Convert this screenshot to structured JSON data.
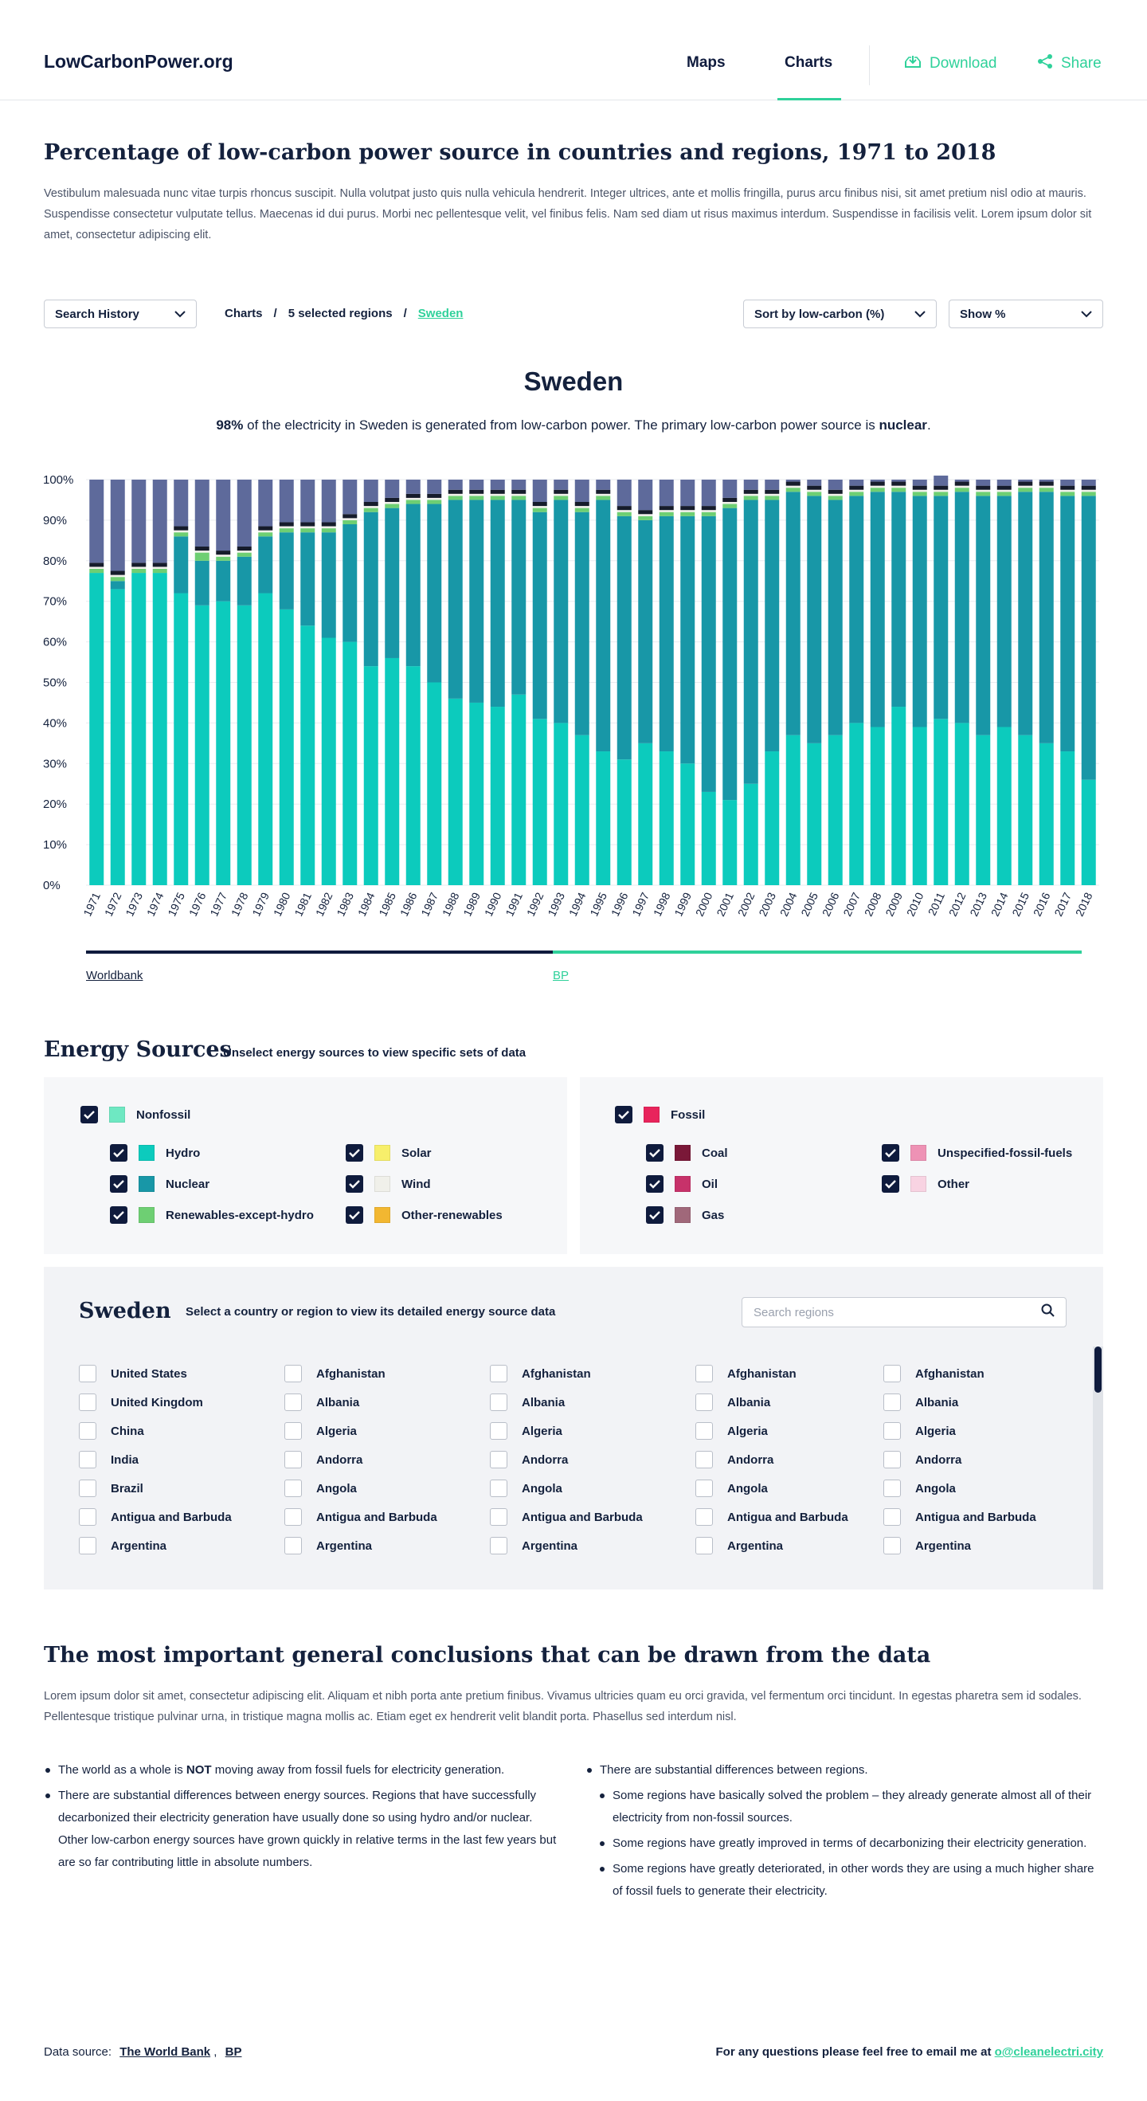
{
  "header": {
    "logo": "LowCarbonPower.org",
    "nav": [
      {
        "label": "Maps"
      },
      {
        "label": "Charts"
      }
    ],
    "download_label": "Download",
    "share_label": "Share"
  },
  "intro": {
    "title": "Percentage of low-carbon power source in countries and regions, 1971 to 2018",
    "text": "Vestibulum malesuada nunc vitae turpis rhoncus suscipit. Nulla volutpat justo quis nulla vehicula hendrerit. Integer ultrices, ante et mollis fringilla, purus arcu finibus nisi, sit amet pretium nisl odio at mauris. Suspendisse consectetur vulputate tellus. Maecenas id dui purus. Morbi nec pellentesque velit, vel finibus felis. Nam sed diam ut risus maximus interdum. Suspendisse in facilisis velit. Lorem ipsum dolor sit amet, consectetur adipiscing elit."
  },
  "controls": {
    "search_history": "Search History",
    "breadcrumb": [
      "Charts",
      "/",
      "5 selected regions",
      "/",
      "Sweden"
    ],
    "sort_label": "Sort by low-carbon (%)",
    "show_label": "Show %"
  },
  "chart_heading": {
    "title": "Sweden",
    "pct": "98%",
    "sub_a": " of the electricity in Sweden is generated from low-carbon power. The primary low-carbon power source is ",
    "primary": "nuclear",
    "sub_b": "."
  },
  "chart_data": {
    "type": "bar",
    "stacked": true,
    "ylim": [
      0,
      100
    ],
    "yticks": [
      "0%",
      "10%",
      "20%",
      "30%",
      "40%",
      "50%",
      "60%",
      "70%",
      "80%",
      "90%",
      "100%"
    ],
    "grid": true,
    "categories": [
      "1971",
      "1972",
      "1973",
      "1974",
      "1975",
      "1976",
      "1977",
      "1978",
      "1979",
      "1980",
      "1981",
      "1982",
      "1983",
      "1984",
      "1985",
      "1986",
      "1987",
      "1988",
      "1989",
      "1990",
      "1991",
      "1992",
      "1993",
      "1994",
      "1995",
      "1996",
      "1997",
      "1998",
      "1999",
      "2000",
      "2001",
      "2002",
      "2003",
      "2004",
      "2005",
      "2006",
      "2007",
      "2008",
      "2009",
      "2010",
      "2011",
      "2012",
      "2013",
      "2014",
      "2015",
      "2016",
      "2017",
      "2018"
    ],
    "series": [
      {
        "name": "Hydro",
        "color": "#0ccbbd",
        "values": [
          77,
          73,
          77,
          77,
          72,
          69,
          70,
          69,
          72,
          68,
          64,
          61,
          60,
          54,
          56,
          54,
          50,
          46,
          45,
          44,
          47,
          41,
          40,
          37,
          33,
          31,
          35,
          33,
          30,
          23,
          21,
          25,
          33,
          37,
          35,
          37,
          40,
          39,
          44,
          39,
          41,
          40,
          37,
          39,
          37,
          35,
          33,
          26
        ]
      },
      {
        "name": "Nuclear",
        "color": "#1897a7",
        "values": [
          0,
          2,
          0,
          0,
          14,
          11,
          10,
          12,
          14,
          19,
          23,
          26,
          29,
          38,
          37,
          40,
          44,
          49,
          50,
          51,
          48,
          51,
          55,
          55,
          62,
          60,
          55,
          58,
          61,
          68,
          72,
          70,
          62,
          60,
          61,
          58,
          56,
          58,
          53,
          57,
          55,
          57,
          59,
          57,
          60,
          62,
          63,
          70
        ]
      },
      {
        "name": "Renewables-except-hydro",
        "color": "#6ecf73",
        "values": [
          1,
          1,
          1,
          1,
          1,
          2,
          1,
          1,
          1,
          1,
          1,
          1,
          1,
          1,
          1,
          1,
          1,
          1,
          1,
          1,
          1,
          1,
          1,
          1,
          1,
          1,
          1,
          1,
          1,
          1,
          1,
          1,
          1,
          1,
          1,
          1,
          1,
          1,
          1,
          1,
          1,
          1,
          1,
          1,
          1,
          1,
          1,
          1
        ]
      },
      {
        "name": "Solar",
        "color": "#f7ef6b",
        "values": [
          0,
          0,
          0,
          0,
          0,
          0,
          0,
          0,
          0,
          0,
          0,
          0,
          0,
          0,
          0,
          0,
          0,
          0,
          0,
          0,
          0,
          0,
          0,
          0,
          0,
          0,
          0,
          0,
          0,
          0,
          0,
          0,
          0,
          0,
          0,
          0,
          0,
          0,
          0,
          0,
          0,
          0,
          0,
          0,
          0,
          0,
          0,
          0
        ]
      },
      {
        "name": "Wind",
        "color": "#f0f0ea",
        "values": [
          0.5,
          0.5,
          0.5,
          0.5,
          0.5,
          0.5,
          0.5,
          0.5,
          0.5,
          0.5,
          0.5,
          0.5,
          0.5,
          0.5,
          0.5,
          0.5,
          0.5,
          0.5,
          0.5,
          0.5,
          0.5,
          0.5,
          0.5,
          0.5,
          0.5,
          0.5,
          0.5,
          0.5,
          0.5,
          0.5,
          0.5,
          0.5,
          0.5,
          0.5,
          0.5,
          0.5,
          0.5,
          0.5,
          0.5,
          0.5,
          0.5,
          0.5,
          0.5,
          0.5,
          0.5,
          0.5,
          0.5,
          0.5
        ]
      },
      {
        "name": "Coal",
        "color": "#161c2b",
        "values": [
          1,
          1,
          1,
          1,
          1,
          1,
          1,
          1,
          1,
          1,
          1,
          1,
          1,
          1,
          1,
          1,
          1,
          1,
          1,
          1,
          1,
          1,
          1,
          1,
          1,
          1,
          1,
          1,
          1,
          1,
          1,
          1,
          1,
          1,
          1,
          1,
          1,
          1,
          1,
          1,
          1,
          1,
          1,
          1,
          1,
          1,
          1,
          1
        ]
      },
      {
        "name": "Fossil",
        "color": "#5e6a9b",
        "values": [
          20.5,
          22.5,
          20.5,
          20.5,
          11.5,
          16.5,
          17.5,
          16.5,
          11.5,
          10.5,
          10.5,
          10.5,
          8.5,
          5.5,
          4.5,
          3.5,
          3.5,
          2.5,
          2.5,
          2.5,
          2.5,
          5.5,
          2.5,
          5.5,
          2.5,
          6.5,
          7.5,
          6.5,
          6.5,
          6.5,
          4.5,
          2.5,
          2.5,
          0.5,
          1.5,
          2.5,
          1.5,
          0.5,
          0.5,
          1.5,
          2.5,
          0.5,
          1.5,
          1.5,
          0.5,
          0.5,
          1.5,
          1.5
        ]
      }
    ],
    "sources": [
      {
        "name": "Worldbank",
        "from": "1971",
        "to": "1992"
      },
      {
        "name": "BP",
        "from": "1993",
        "to": "2018"
      }
    ]
  },
  "energy": {
    "title": "Energy Sources",
    "subtitle": "Unselect energy sources to view specific sets of data",
    "nonfossil": {
      "label": "Nonfossil",
      "color": "#6ee8c2",
      "items": [
        {
          "label": "Hydro",
          "color": "#0ccbbd"
        },
        {
          "label": "Solar",
          "color": "#f7ef6b"
        },
        {
          "label": "Nuclear",
          "color": "#1897a7"
        },
        {
          "label": "Wind",
          "color": "#f0f0ea"
        },
        {
          "label": "Renewables-except-hydro",
          "color": "#6ecf73"
        },
        {
          "label": "Other-renewables",
          "color": "#f2b731"
        }
      ]
    },
    "fossil": {
      "label": "Fossil",
      "color": "#e8245c",
      "items": [
        {
          "label": "Coal",
          "color": "#7a1838"
        },
        {
          "label": "Unspecified-fossil-fuels",
          "color": "#ee92b5"
        },
        {
          "label": "Oil",
          "color": "#c7326a"
        },
        {
          "label": "Other",
          "color": "#f8d3e2"
        },
        {
          "label": "Gas",
          "color": "#a0687a"
        }
      ]
    }
  },
  "regions": {
    "title": "Sweden",
    "subtitle": "Select a country or region to view its detailed energy source data",
    "search_placeholder": "Search regions",
    "columns": [
      [
        "United States",
        "United Kingdom",
        "China",
        "India",
        "Brazil",
        "Antigua and Barbuda",
        "Argentina"
      ],
      [
        "Afghanistan",
        "Albania",
        "Algeria",
        "Andorra",
        "Angola",
        "Antigua and Barbuda",
        "Argentina"
      ],
      [
        "Afghanistan",
        "Albania",
        "Algeria",
        "Andorra",
        "Angola",
        "Antigua and Barbuda",
        "Argentina"
      ],
      [
        "Afghanistan",
        "Albania",
        "Algeria",
        "Andorra",
        "Angola",
        "Antigua and Barbuda",
        "Argentina"
      ],
      [
        "Afghanistan",
        "Albania",
        "Algeria",
        "Andorra",
        "Angola",
        "Antigua and Barbuda",
        "Argentina"
      ]
    ]
  },
  "conclusions": {
    "title": "The most important general conclusions that can be drawn from the data",
    "intro": "Lorem ipsum dolor sit amet, consectetur adipiscing elit. Aliquam et nibh porta ante pretium finibus. Vivamus ultricies quam eu orci gravida, vel fermentum orci tincidunt. In egestas pharetra sem id sodales. Pellentesque tristique pulvinar urna, in tristique magna mollis ac. Etiam eget ex hendrerit velit blandit porta. Phasellus sed interdum nisl.",
    "left_1a": "The world as a whole is ",
    "left_1b": "NOT",
    "left_1c": " moving away from fossil fuels for electricity generation.",
    "left_2": "There are substantial differences between energy sources. Regions that have successfully decarbonized their electricity generation have usually done so using hydro and/or nuclear. Other low-carbon energy sources have grown quickly in relative terms in the last few years but are so far contributing little in absolute numbers.",
    "right_1": "There are substantial differences between regions.",
    "right_sub": [
      "Some regions have basically solved the problem – they already generate almost all of their electricity from non-fossil sources.",
      "Some regions have greatly improved in terms of decarbonizing their electricity generation.",
      "Some regions have greatly deteriorated, in other words they are using a much higher share of fossil fuels to generate their electricity."
    ]
  },
  "footer": {
    "source_label": "Data source:",
    "source_1": "The World Bank",
    "source_sep": " ,",
    "source_2": "BP",
    "contact": "For any questions please feel free to email me at ",
    "email": "o@cleanelectri.city"
  }
}
